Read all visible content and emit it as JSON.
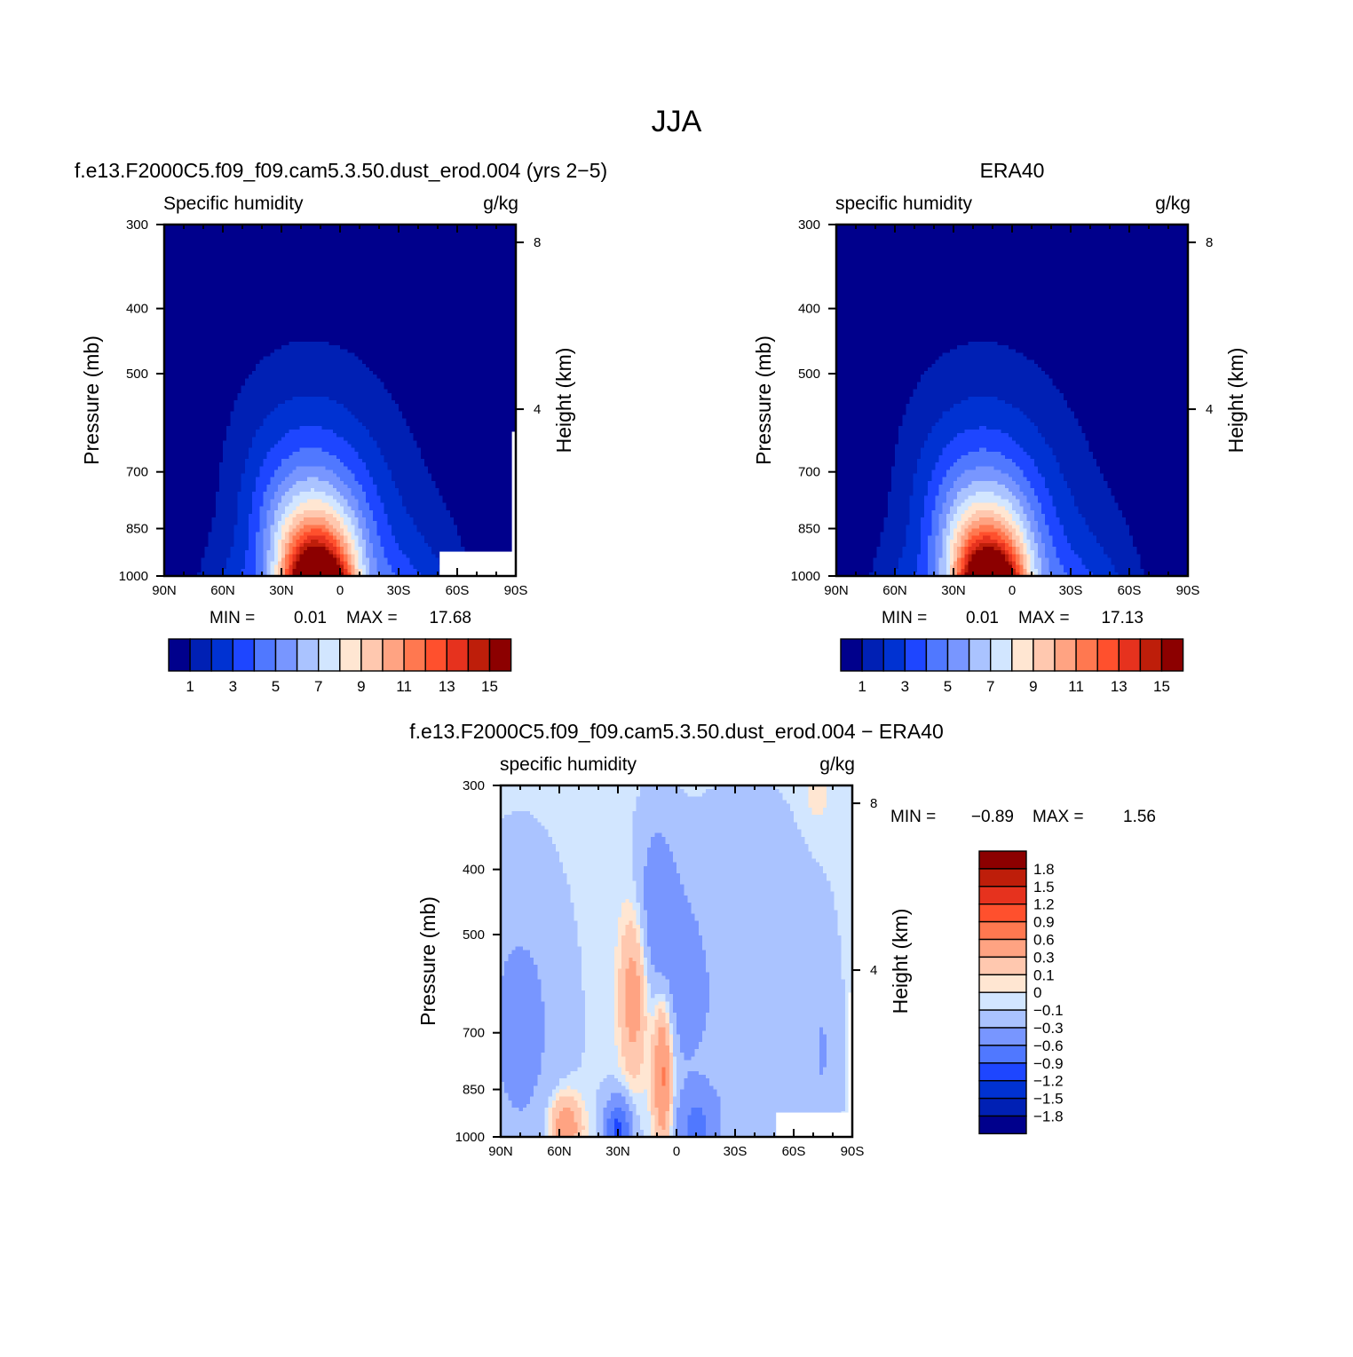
{
  "figure": {
    "title": "JJA",
    "units": "g/kg",
    "pressure_label": "Pressure (mb)",
    "height_label": "Height (km)"
  },
  "chart_data": [
    {
      "type": "contour",
      "title": "f.e13.F2000C5.f09_f09.cam5.3.50.dust_erod.004 (yrs 2−5)",
      "subtitle": "Specific humidity",
      "units": "g/kg",
      "xlabel": "",
      "ylabel": "Pressure (mb)",
      "y2label": "Height (km)",
      "x_ticks": [
        "90N",
        "60N",
        "30N",
        "0",
        "30S",
        "60S",
        "90S"
      ],
      "x_range": [
        90,
        -90
      ],
      "y_ticks": [
        300,
        400,
        500,
        700,
        850,
        1000
      ],
      "y_range": [
        1000,
        300
      ],
      "y2_ticks": [
        8,
        4
      ],
      "min_label": "MIN =",
      "min_value": "0.01",
      "max_label": "MAX =",
      "max_value": "17.68",
      "min": 0.01,
      "max": 17.68,
      "peak_lat": 10,
      "colorbar": {
        "orientation": "horizontal",
        "tick_labels": [
          "1",
          "3",
          "5",
          "7",
          "9",
          "11",
          "13",
          "15"
        ],
        "colors": [
          "#00008c",
          "#0020b4",
          "#0032d2",
          "#1e46ff",
          "#5078ff",
          "#7896ff",
          "#aac3ff",
          "#d2e6ff",
          "#ffe6d2",
          "#ffc8af",
          "#ffa382",
          "#ff7850",
          "#ff502d",
          "#e6321e",
          "#be1e0a",
          "#8c0000"
        ]
      }
    },
    {
      "type": "contour",
      "title": "ERA40",
      "subtitle": "specific humidity",
      "units": "g/kg",
      "xlabel": "",
      "ylabel": "Pressure (mb)",
      "y2label": "Height (km)",
      "x_ticks": [
        "90N",
        "60N",
        "30N",
        "0",
        "30S",
        "60S",
        "90S"
      ],
      "x_range": [
        90,
        -90
      ],
      "y_ticks": [
        300,
        400,
        500,
        700,
        850,
        1000
      ],
      "y_range": [
        1000,
        300
      ],
      "y2_ticks": [
        8,
        4
      ],
      "min_label": "MIN =",
      "min_value": "0.01",
      "max_label": "MAX =",
      "max_value": "17.13",
      "min": 0.01,
      "max": 17.13,
      "peak_lat": 10,
      "colorbar": {
        "orientation": "horizontal",
        "tick_labels": [
          "1",
          "3",
          "5",
          "7",
          "9",
          "11",
          "13",
          "15"
        ],
        "colors": [
          "#00008c",
          "#0020b4",
          "#0032d2",
          "#1e46ff",
          "#5078ff",
          "#7896ff",
          "#aac3ff",
          "#d2e6ff",
          "#ffe6d2",
          "#ffc8af",
          "#ffa382",
          "#ff7850",
          "#ff502d",
          "#e6321e",
          "#be1e0a",
          "#8c0000"
        ]
      }
    },
    {
      "type": "contour",
      "title": "f.e13.F2000C5.f09_f09.cam5.3.50.dust_erod.004 − ERA40",
      "subtitle": "specific humidity",
      "units": "g/kg",
      "xlabel": "",
      "ylabel": "Pressure (mb)",
      "y2label": "Height (km)",
      "x_ticks": [
        "90N",
        "60N",
        "30N",
        "0",
        "30S",
        "60S",
        "90S"
      ],
      "x_range": [
        90,
        -90
      ],
      "y_ticks": [
        300,
        400,
        500,
        700,
        850,
        1000
      ],
      "y_range": [
        1000,
        300
      ],
      "y2_ticks": [
        8,
        4
      ],
      "min_label": "MIN =",
      "min_value": "−0.89",
      "max_label": "MAX =",
      "max_value": "1.56",
      "min": -0.89,
      "max": 1.56,
      "colorbar": {
        "orientation": "vertical",
        "tick_labels": [
          "1.8",
          "1.5",
          "1.2",
          "0.9",
          "0.6",
          "0.3",
          "0.1",
          "0",
          "−0.1",
          "−0.3",
          "−0.6",
          "−0.9",
          "−1.2",
          "−1.5",
          "−1.8"
        ],
        "colors": [
          "#8c0000",
          "#be1e0a",
          "#e6321e",
          "#ff502d",
          "#ff7850",
          "#ffa382",
          "#ffc8af",
          "#ffe6d2",
          "#d2e6ff",
          "#aac3ff",
          "#7896ff",
          "#5078ff",
          "#1e46ff",
          "#0032d2",
          "#0020b4",
          "#00008c"
        ]
      }
    }
  ]
}
